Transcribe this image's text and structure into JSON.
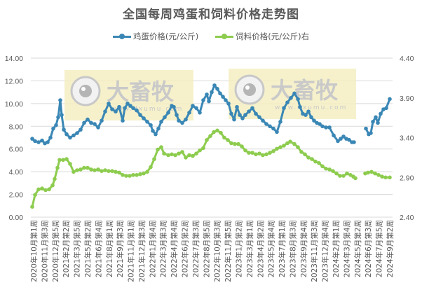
{
  "chart_data": {
    "type": "line",
    "title": "全国每周鸡蛋和饲料价格走势图",
    "xlabel": "",
    "ylabel": "",
    "legend_position": "top",
    "grid": true,
    "left_axis": {
      "ticks": [
        "0.00",
        "2.00",
        "4.00",
        "6.00",
        "8.00",
        "10.00",
        "12.00",
        "14.00"
      ],
      "range": [
        0,
        14
      ]
    },
    "right_axis": {
      "ticks": [
        "2.40",
        "2.90",
        "3.40",
        "3.90",
        "4.40"
      ],
      "range": [
        2.4,
        4.4
      ]
    },
    "x_tick_labels": [
      "2020年10月第1周",
      "2020年11月第3周",
      "2020年12月第5周",
      "2021年2月第2周",
      "2021年3月第5周",
      "2021年5月第2周",
      "2021年6月第4周",
      "2021年8月第1周",
      "2021年9月第3周",
      "2021年11月第1周",
      "2021年12月第3周",
      "2022年1月第4周",
      "2022年3月第3周",
      "2022年4月第4周",
      "2022年6月第2周",
      "2022年7月第3周",
      "2022年8月第5周",
      "2022年10月第3周",
      "2022年11月第5周",
      "2023年1月第2周",
      "2023年3月第1周",
      "2023年4月第2周",
      "2023年5月第4周",
      "2023年7月第1周",
      "2023年8月第3周",
      "2023年9月第4周",
      "2023年11月第3周",
      "2023年12月第4周",
      "2024年2月第1周",
      "2024年3月第4周",
      "2024年5月第2周",
      "2024年6月第3周",
      "2024年7月第5周",
      "2024年9月第2周"
    ],
    "series": [
      {
        "name": "鸡蛋价格(元/公斤)",
        "axis": "left",
        "color": "#3a87b5",
        "points": [
          [
            46,
            6.9
          ],
          [
            50,
            6.7
          ],
          [
            55,
            6.6
          ],
          [
            60,
            6.75
          ],
          [
            64,
            6.5
          ],
          [
            68,
            6.6
          ],
          [
            72,
            7.0
          ],
          [
            76,
            7.8
          ],
          [
            80,
            8.1
          ],
          [
            83,
            8.8
          ],
          [
            86,
            10.3
          ],
          [
            88,
            9.0
          ],
          [
            91,
            7.7
          ],
          [
            95,
            7.3
          ],
          [
            100,
            7.0
          ],
          [
            105,
            7.2
          ],
          [
            110,
            7.4
          ],
          [
            115,
            7.7
          ],
          [
            120,
            8.3
          ],
          [
            125,
            8.6
          ],
          [
            130,
            8.3
          ],
          [
            135,
            8.2
          ],
          [
            140,
            7.9
          ],
          [
            145,
            8.5
          ],
          [
            150,
            9.3
          ],
          [
            155,
            10.0
          ],
          [
            160,
            9.5
          ],
          [
            165,
            9.3
          ],
          [
            170,
            9.7
          ],
          [
            175,
            8.5
          ],
          [
            178,
            9.6
          ],
          [
            182,
            10.0
          ],
          [
            186,
            9.8
          ],
          [
            190,
            9.6
          ],
          [
            195,
            9.4
          ],
          [
            200,
            9.0
          ],
          [
            205,
            8.7
          ],
          [
            210,
            8.4
          ],
          [
            215,
            8.1
          ],
          [
            218,
            7.6
          ],
          [
            222,
            7.3
          ],
          [
            226,
            7.8
          ],
          [
            230,
            8.4
          ],
          [
            235,
            8.8
          ],
          [
            240,
            9.2
          ],
          [
            245,
            9.8
          ],
          [
            248,
            9.7
          ],
          [
            252,
            9.0
          ],
          [
            255,
            8.5
          ],
          [
            260,
            8.3
          ],
          [
            265,
            8.6
          ],
          [
            270,
            9.2
          ],
          [
            275,
            9.8
          ],
          [
            280,
            9.6
          ],
          [
            285,
            9.2
          ],
          [
            290,
            10.3
          ],
          [
            295,
            10.8
          ],
          [
            298,
            10.2
          ],
          [
            302,
            11.0
          ],
          [
            306,
            11.6
          ],
          [
            310,
            11.3
          ],
          [
            314,
            10.9
          ],
          [
            318,
            10.6
          ],
          [
            322,
            10.3
          ],
          [
            326,
            10.0
          ],
          [
            330,
            9.1
          ],
          [
            334,
            8.6
          ],
          [
            338,
            9.7
          ],
          [
            342,
            9.0
          ],
          [
            346,
            8.7
          ],
          [
            350,
            9.0
          ],
          [
            355,
            9.3
          ],
          [
            360,
            9.6
          ],
          [
            365,
            9.1
          ],
          [
            370,
            8.8
          ],
          [
            375,
            8.5
          ],
          [
            380,
            8.2
          ],
          [
            385,
            8.0
          ],
          [
            390,
            7.8
          ],
          [
            395,
            7.5
          ],
          [
            400,
            8.4
          ],
          [
            405,
            9.6
          ],
          [
            410,
            10.1
          ],
          [
            415,
            10.5
          ],
          [
            420,
            10.9
          ],
          [
            425,
            10.4
          ],
          [
            428,
            9.7
          ],
          [
            432,
            9.1
          ],
          [
            436,
            9.0
          ],
          [
            440,
            9.3
          ],
          [
            444,
            8.8
          ],
          [
            448,
            8.5
          ],
          [
            452,
            8.3
          ],
          [
            456,
            8.2
          ],
          [
            460,
            8.0
          ],
          [
            465,
            7.9
          ],
          [
            470,
            7.9
          ],
          [
            476,
            7.2
          ],
          [
            482,
            6.7
          ],
          [
            486,
            6.9
          ],
          [
            490,
            7.1
          ],
          [
            494,
            6.9
          ],
          [
            498,
            6.8
          ],
          [
            502,
            6.6
          ],
          [
            505,
            6.6
          ],
          null,
          [
            522,
            7.8
          ],
          [
            526,
            7.3
          ],
          [
            529,
            7.4
          ],
          [
            532,
            8.4
          ],
          [
            536,
            8.8
          ],
          [
            539,
            8.3
          ],
          [
            543,
            9.1
          ],
          [
            547,
            9.5
          ],
          [
            551,
            9.6
          ],
          [
            556,
            10.4
          ]
        ]
      },
      {
        "name": "饲料价格(元/公斤)右",
        "axis": "right",
        "color": "#8dcc4e",
        "points": [
          [
            46,
            2.53
          ],
          [
            50,
            2.68
          ],
          [
            55,
            2.75
          ],
          [
            60,
            2.76
          ],
          [
            65,
            2.74
          ],
          [
            70,
            2.75
          ],
          [
            75,
            2.8
          ],
          [
            78,
            2.88
          ],
          [
            82,
            3.02
          ],
          [
            85,
            3.12
          ],
          [
            90,
            3.12
          ],
          [
            95,
            3.13
          ],
          [
            100,
            3.07
          ],
          [
            105,
            2.97
          ],
          [
            110,
            2.99
          ],
          [
            115,
            3.0
          ],
          [
            120,
            3.02
          ],
          [
            125,
            3.02
          ],
          [
            130,
            3.0
          ],
          [
            135,
            2.99
          ],
          [
            140,
            3.0
          ],
          [
            145,
            2.98
          ],
          [
            150,
            2.99
          ],
          [
            155,
            2.98
          ],
          [
            160,
            2.98
          ],
          [
            165,
            2.97
          ],
          [
            170,
            2.96
          ],
          [
            175,
            2.93
          ],
          [
            180,
            2.92
          ],
          [
            185,
            2.92
          ],
          [
            190,
            2.93
          ],
          [
            195,
            2.93
          ],
          [
            200,
            2.94
          ],
          [
            205,
            2.95
          ],
          [
            210,
            2.97
          ],
          [
            215,
            3.03
          ],
          [
            220,
            3.13
          ],
          [
            225,
            3.25
          ],
          [
            230,
            3.28
          ],
          [
            234,
            3.2
          ],
          [
            240,
            3.18
          ],
          [
            245,
            3.19
          ],
          [
            250,
            3.18
          ],
          [
            255,
            3.2
          ],
          [
            260,
            3.22
          ],
          [
            265,
            3.15
          ],
          [
            270,
            3.18
          ],
          [
            275,
            3.17
          ],
          [
            280,
            3.2
          ],
          [
            285,
            3.24
          ],
          [
            290,
            3.27
          ],
          [
            295,
            3.37
          ],
          [
            300,
            3.42
          ],
          [
            305,
            3.47
          ],
          [
            310,
            3.49
          ],
          [
            315,
            3.46
          ],
          [
            320,
            3.4
          ],
          [
            325,
            3.37
          ],
          [
            330,
            3.33
          ],
          [
            335,
            3.32
          ],
          [
            340,
            3.32
          ],
          [
            345,
            3.29
          ],
          [
            350,
            3.24
          ],
          [
            355,
            3.21
          ],
          [
            360,
            3.21
          ],
          [
            365,
            3.19
          ],
          [
            370,
            3.2
          ],
          [
            375,
            3.18
          ],
          [
            380,
            3.19
          ],
          [
            385,
            3.21
          ],
          [
            390,
            3.23
          ],
          [
            395,
            3.26
          ],
          [
            400,
            3.28
          ],
          [
            405,
            3.3
          ],
          [
            410,
            3.33
          ],
          [
            414,
            3.35
          ],
          [
            420,
            3.32
          ],
          [
            425,
            3.28
          ],
          [
            430,
            3.22
          ],
          [
            435,
            3.19
          ],
          [
            440,
            3.15
          ],
          [
            445,
            3.13
          ],
          [
            450,
            3.1
          ],
          [
            455,
            3.08
          ],
          [
            460,
            3.04
          ],
          [
            465,
            3.01
          ],
          [
            470,
            3.0
          ],
          [
            475,
            2.98
          ],
          [
            480,
            2.95
          ],
          [
            485,
            2.92
          ],
          [
            490,
            2.92
          ],
          [
            495,
            2.95
          ],
          [
            500,
            2.93
          ],
          [
            504,
            2.91
          ],
          [
            507,
            2.89
          ],
          null,
          [
            521,
            2.95
          ],
          [
            525,
            2.96
          ],
          [
            530,
            2.97
          ],
          [
            535,
            2.95
          ],
          [
            540,
            2.93
          ],
          [
            545,
            2.91
          ],
          [
            550,
            2.9
          ],
          [
            556,
            2.9
          ]
        ]
      }
    ]
  },
  "header": {
    "title": "全国每周鸡蛋和饲料价格走势图"
  },
  "legend": {
    "egg_label": "鸡蛋价格(元/公斤)",
    "feed_label": "饲料价格(元/公斤)右",
    "egg_color": "#3a87b5",
    "feed_color": "#8dcc4e"
  },
  "watermark": {
    "brand": "大畜牧",
    "url": "www.dxumu.com"
  }
}
